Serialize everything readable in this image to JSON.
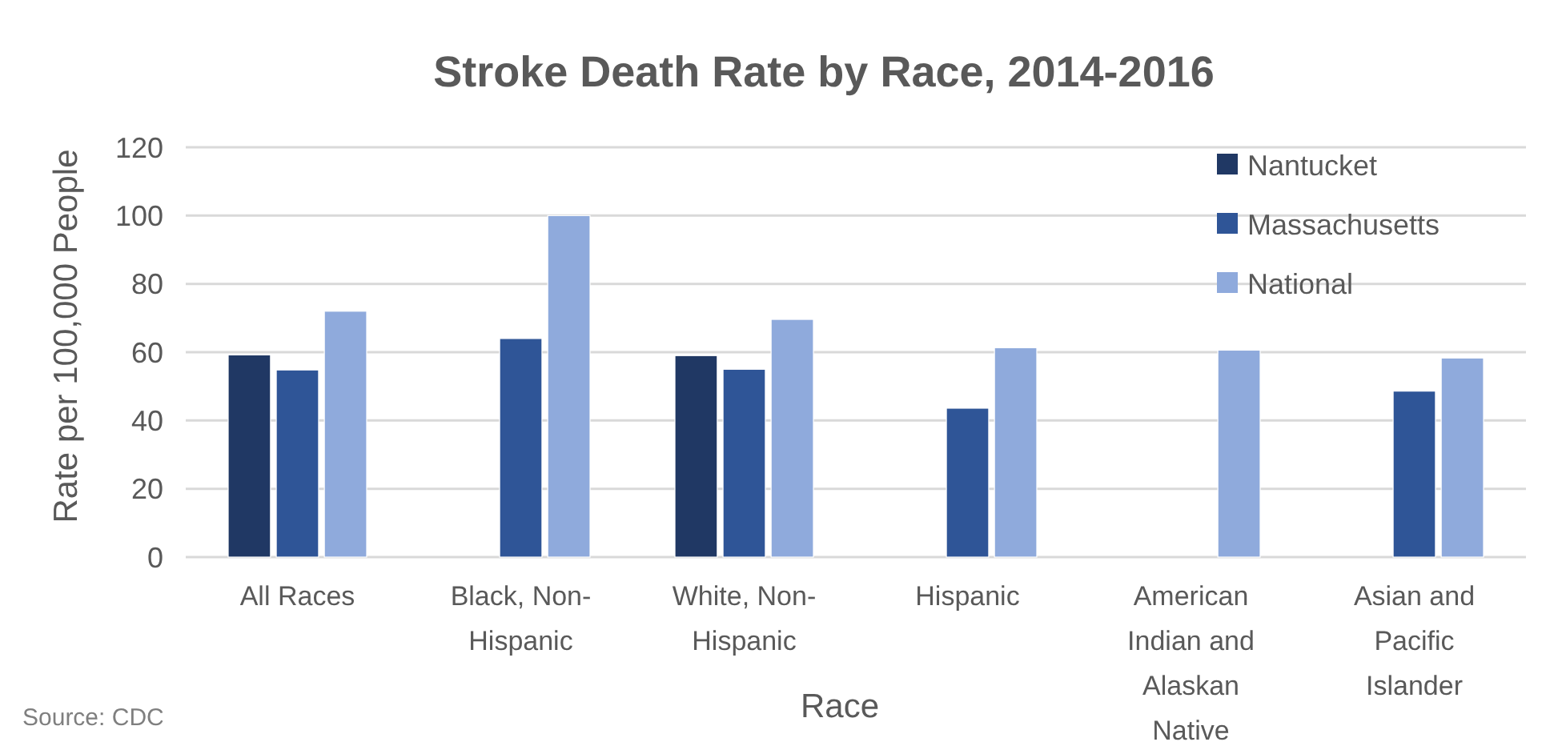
{
  "chart_data": {
    "type": "bar",
    "title": "Stroke Death Rate by Race, 2014-2016",
    "xlabel": "Race",
    "ylabel": "Rate per 100,000 People",
    "categories": [
      "All Races",
      "Black, Non-Hispanic",
      "White, Non-Hispanic",
      "Hispanic",
      "American Indian and Alaskan Native",
      "Asian and Pacific Islander"
    ],
    "series": [
      {
        "name": "Nantucket",
        "color": "#203864",
        "values": [
          59.2,
          null,
          59,
          null,
          null,
          null
        ]
      },
      {
        "name": "Massachusetts",
        "color": "#2f5597",
        "values": [
          54.8,
          64,
          55,
          43.6,
          null,
          48.6
        ]
      },
      {
        "name": "National",
        "color": "#8faadc",
        "values": [
          72,
          100,
          69.6,
          61.3,
          60.6,
          58.3
        ]
      }
    ],
    "ylim": [
      0,
      120
    ],
    "yticks": [
      0,
      20,
      40,
      60,
      80,
      100,
      120
    ],
    "grid": "y",
    "legend": "top right",
    "annotations": [
      "Source: CDC"
    ]
  }
}
